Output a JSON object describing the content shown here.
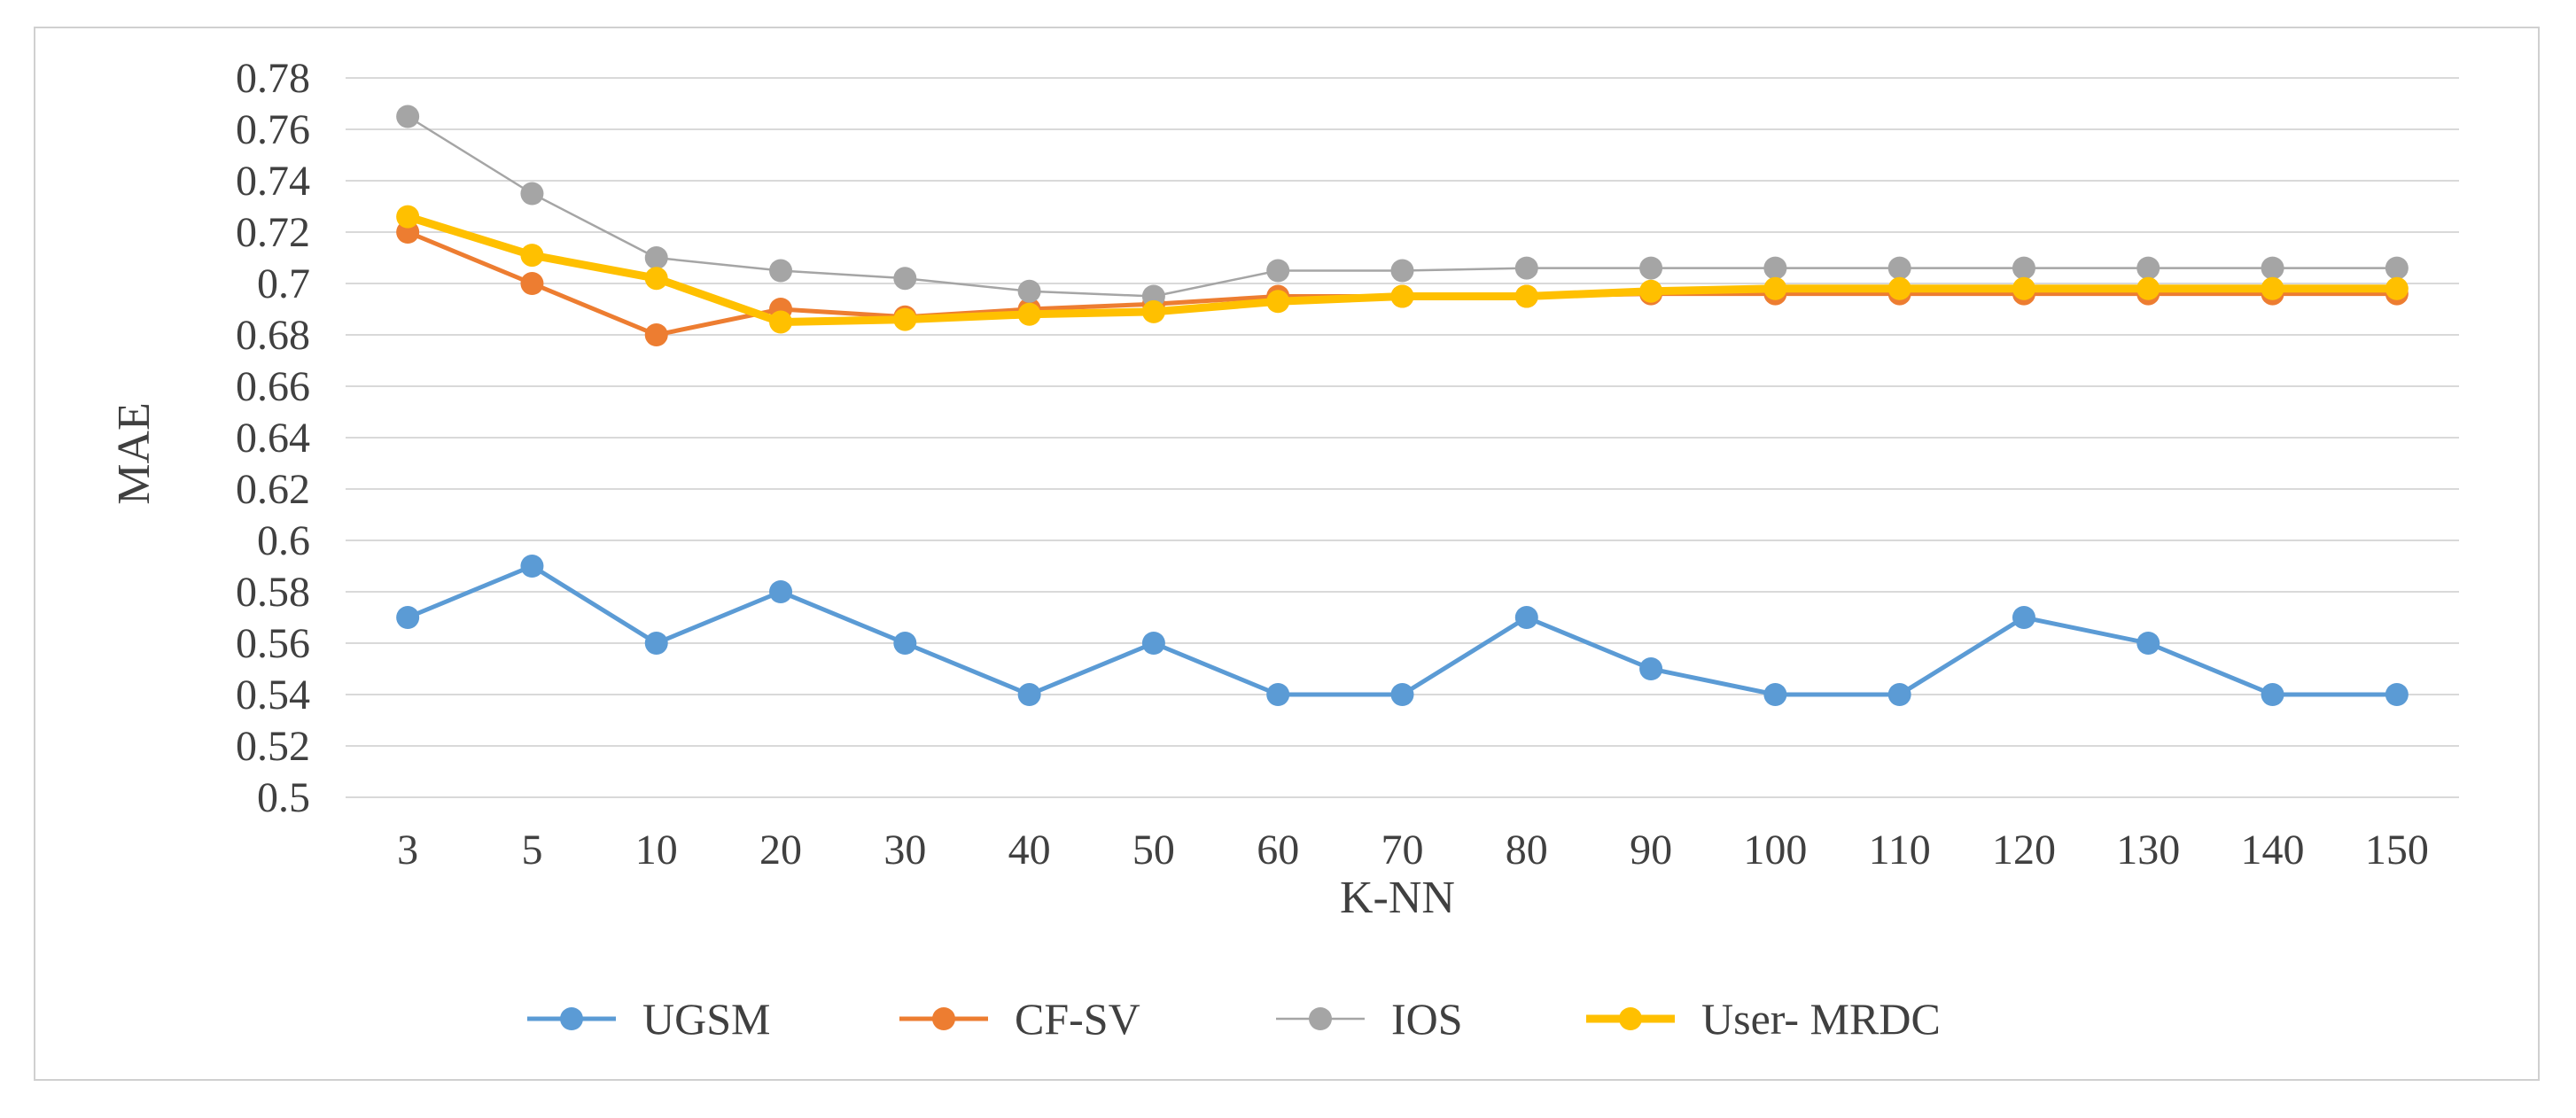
{
  "chart_data": {
    "type": "line",
    "title": "",
    "xlabel": "K-NN",
    "ylabel": "MAE",
    "categories": [
      "3",
      "5",
      "10",
      "20",
      "30",
      "40",
      "50",
      "60",
      "70",
      "80",
      "90",
      "100",
      "110",
      "120",
      "130",
      "140",
      "150"
    ],
    "ylim": [
      0.5,
      0.78
    ],
    "yticks": [
      "0.5",
      "0.52",
      "0.54",
      "0.56",
      "0.58",
      "0.6",
      "0.62",
      "0.64",
      "0.66",
      "0.68",
      "0.7",
      "0.72",
      "0.74",
      "0.76",
      "0.78"
    ],
    "grid": true,
    "legend_position": "bottom",
    "series": [
      {
        "name": "UGSM",
        "color": "#5b9bd5",
        "values": [
          0.57,
          0.59,
          0.56,
          0.58,
          0.56,
          0.54,
          0.56,
          0.54,
          0.54,
          0.57,
          0.55,
          0.54,
          0.54,
          0.57,
          0.56,
          0.54,
          0.54
        ]
      },
      {
        "name": "CF-SV",
        "color": "#ed7d31",
        "values": [
          0.72,
          0.7,
          0.68,
          0.69,
          0.687,
          0.69,
          0.692,
          0.695,
          0.695,
          0.695,
          0.696,
          0.696,
          0.696,
          0.696,
          0.696,
          0.696,
          0.696
        ]
      },
      {
        "name": "IOS",
        "color": "#a5a5a5",
        "values": [
          0.765,
          0.735,
          0.71,
          0.705,
          0.702,
          0.697,
          0.695,
          0.705,
          0.705,
          0.706,
          0.706,
          0.706,
          0.706,
          0.706,
          0.706,
          0.706,
          0.706
        ]
      },
      {
        "name": "User- MRDC",
        "color": "#ffc000",
        "values": [
          0.726,
          0.711,
          0.702,
          0.685,
          0.686,
          0.688,
          0.689,
          0.693,
          0.695,
          0.695,
          0.697,
          0.698,
          0.698,
          0.698,
          0.698,
          0.698,
          0.698
        ]
      }
    ]
  }
}
